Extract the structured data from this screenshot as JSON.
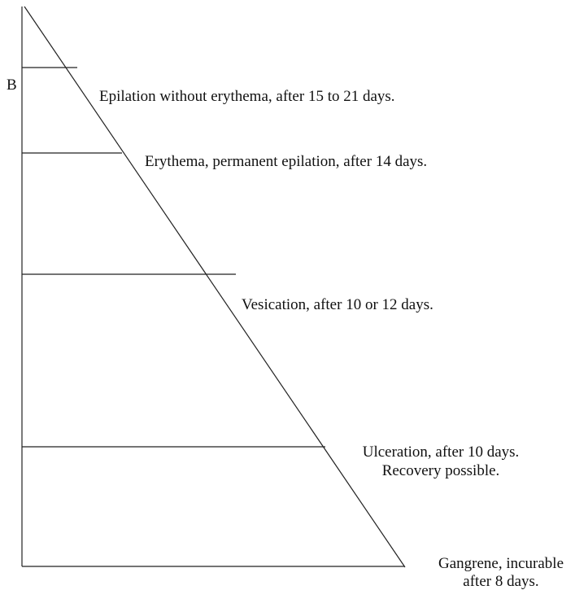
{
  "axis_label": "B",
  "levels": [
    {
      "lines": [
        "Epilation without erythema, after 15 to 21 days."
      ]
    },
    {
      "lines": [
        "Erythema, permanent epilation, after 14 days."
      ]
    },
    {
      "lines": [
        "Vesication, after 10 or 12 days."
      ]
    },
    {
      "lines": [
        "Ulceration, after 10 days.",
        "Recovery possible."
      ]
    },
    {
      "lines": [
        "Gangrene, incurable",
        "after 8 days."
      ]
    }
  ]
}
